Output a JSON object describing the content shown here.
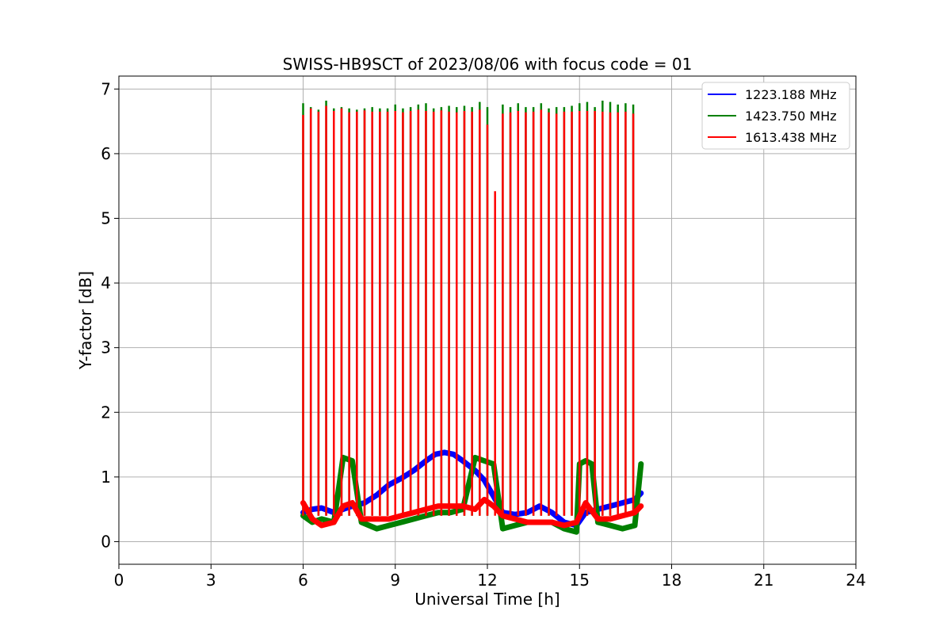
{
  "chart_data": {
    "type": "line",
    "title": "SWISS-HB9SCT of 2023/08/06 with focus code = 01",
    "xlabel": "Universal Time [h]",
    "ylabel": "Y-factor [dB]",
    "xlim": [
      0,
      24
    ],
    "ylim": [
      -0.35,
      7.2
    ],
    "xticks": [
      0,
      3,
      6,
      9,
      12,
      15,
      18,
      21,
      24
    ],
    "yticks": [
      0,
      1,
      2,
      3,
      4,
      5,
      6,
      7
    ],
    "grid": true,
    "legend_position": "top-right",
    "series": [
      {
        "name": "1223.188 MHz",
        "color": "#0000ff",
        "x": [
          6.0,
          6.3,
          6.6,
          7.0,
          7.3,
          7.6,
          8.0,
          8.4,
          8.8,
          9.2,
          9.6,
          10.0,
          10.3,
          10.6,
          10.9,
          11.2,
          11.6,
          11.9,
          12.2,
          12.5,
          12.9,
          13.3,
          13.7,
          14.1,
          14.5,
          14.9,
          15.2,
          15.6,
          16.0,
          16.4,
          16.8,
          17.0
        ],
        "y": [
          0.45,
          0.5,
          0.52,
          0.45,
          0.5,
          0.55,
          0.6,
          0.72,
          0.88,
          0.98,
          1.1,
          1.25,
          1.35,
          1.38,
          1.35,
          1.25,
          1.1,
          0.95,
          0.7,
          0.45,
          0.42,
          0.45,
          0.55,
          0.45,
          0.3,
          0.25,
          0.45,
          0.5,
          0.55,
          0.6,
          0.65,
          0.75
        ]
      },
      {
        "name": "1423.750 MHz",
        "color": "#008000",
        "x": [
          6.0,
          6.3,
          6.6,
          7.0,
          7.3,
          7.6,
          7.9,
          8.4,
          8.8,
          9.2,
          9.6,
          10.0,
          10.4,
          10.8,
          11.2,
          11.6,
          11.9,
          12.2,
          12.5,
          12.9,
          13.3,
          13.7,
          14.1,
          14.5,
          14.9,
          15.0,
          15.2,
          15.4,
          15.6,
          16.0,
          16.4,
          16.8,
          17.0
        ],
        "y": [
          0.4,
          0.3,
          0.35,
          0.3,
          1.3,
          1.25,
          0.3,
          0.2,
          0.25,
          0.3,
          0.35,
          0.4,
          0.45,
          0.45,
          0.5,
          1.3,
          1.25,
          1.2,
          0.2,
          0.25,
          0.3,
          0.3,
          0.3,
          0.2,
          0.15,
          1.2,
          1.25,
          1.2,
          0.3,
          0.25,
          0.2,
          0.25,
          1.2
        ],
        "spikes_x": [
          6.0,
          6.25,
          6.5,
          6.75,
          7.0,
          7.25,
          7.5,
          7.75,
          8.0,
          8.25,
          8.5,
          8.75,
          9.0,
          9.25,
          9.5,
          9.75,
          10.0,
          10.25,
          10.5,
          10.75,
          11.0,
          11.25,
          11.5,
          11.75,
          12.0,
          12.5,
          12.75,
          13.0,
          13.25,
          13.5,
          13.75,
          14.0,
          14.25,
          14.5,
          14.75,
          15.0,
          15.25,
          15.5,
          15.75,
          16.0,
          16.25,
          16.5,
          16.75
        ],
        "spikes_y": [
          6.78,
          6.72,
          6.68,
          6.82,
          6.7,
          6.72,
          6.7,
          6.68,
          6.7,
          6.72,
          6.7,
          6.7,
          6.76,
          6.7,
          6.72,
          6.76,
          6.78,
          6.7,
          6.72,
          6.74,
          6.72,
          6.74,
          6.72,
          6.8,
          6.72,
          6.76,
          6.72,
          6.78,
          6.72,
          6.72,
          6.78,
          6.7,
          6.72,
          6.72,
          6.74,
          6.78,
          6.8,
          6.72,
          6.82,
          6.8,
          6.76,
          6.78,
          6.76
        ]
      },
      {
        "name": "1613.438 MHz",
        "color": "#ff0000",
        "x": [
          6.0,
          6.3,
          6.6,
          7.0,
          7.3,
          7.6,
          7.9,
          8.4,
          8.8,
          9.2,
          9.6,
          10.0,
          10.4,
          10.8,
          11.2,
          11.6,
          11.9,
          12.2,
          12.5,
          12.9,
          13.3,
          13.7,
          14.1,
          14.5,
          14.9,
          15.2,
          15.6,
          16.0,
          16.4,
          16.8,
          17.0
        ],
        "y": [
          0.6,
          0.35,
          0.25,
          0.3,
          0.55,
          0.6,
          0.35,
          0.35,
          0.35,
          0.4,
          0.45,
          0.5,
          0.55,
          0.55,
          0.55,
          0.5,
          0.65,
          0.55,
          0.4,
          0.35,
          0.3,
          0.3,
          0.3,
          0.25,
          0.3,
          0.6,
          0.35,
          0.35,
          0.4,
          0.45,
          0.55
        ],
        "spikes_x": [
          6.0,
          6.25,
          6.5,
          6.75,
          7.0,
          7.25,
          7.5,
          7.75,
          8.0,
          8.25,
          8.5,
          8.75,
          9.0,
          9.25,
          9.5,
          9.75,
          10.0,
          10.25,
          10.5,
          10.75,
          11.0,
          11.25,
          11.5,
          11.75,
          12.0,
          12.25,
          12.5,
          12.75,
          13.0,
          13.25,
          13.5,
          13.75,
          14.0,
          14.25,
          14.5,
          14.75,
          15.0,
          15.25,
          15.5,
          15.75,
          16.0,
          16.25,
          16.5,
          16.75
        ],
        "spikes_y": [
          6.6,
          6.7,
          6.65,
          6.74,
          6.66,
          6.7,
          6.64,
          6.65,
          6.67,
          6.65,
          6.65,
          6.65,
          6.66,
          6.64,
          6.66,
          6.68,
          6.66,
          6.65,
          6.67,
          6.65,
          6.64,
          6.66,
          6.65,
          6.68,
          6.45,
          5.42,
          6.62,
          6.64,
          6.66,
          6.64,
          6.65,
          6.68,
          6.64,
          6.62,
          6.65,
          6.65,
          6.66,
          6.66,
          6.66,
          6.65,
          6.64,
          6.64,
          6.65,
          6.62
        ]
      }
    ]
  }
}
